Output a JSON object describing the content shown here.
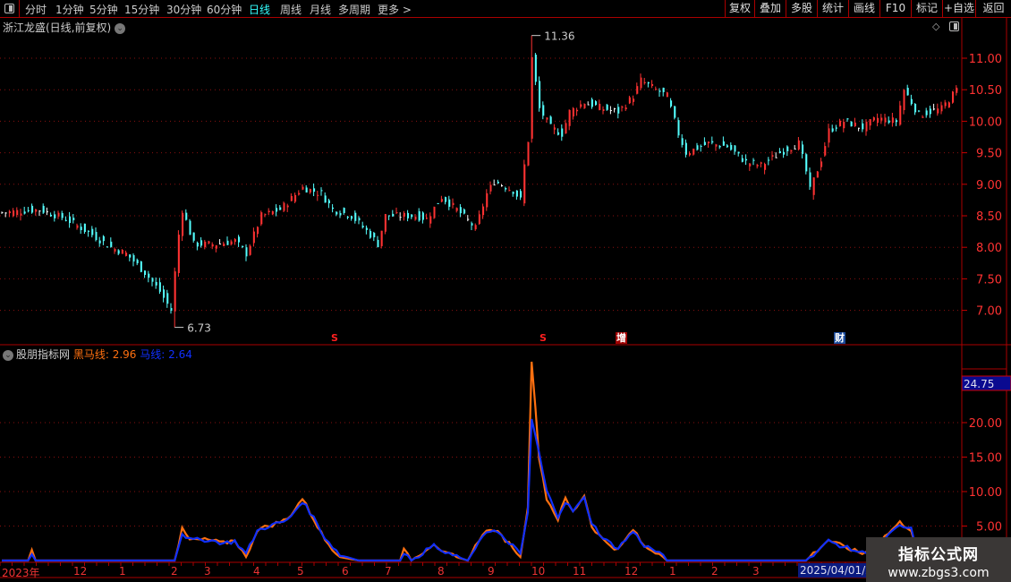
{
  "toolbar": {
    "periods": [
      "分时",
      "1分钟",
      "5分钟",
      "15分钟",
      "30分钟",
      "60分钟",
      "日线",
      "周线",
      "月线",
      "多周期",
      "更多 >"
    ],
    "active_period": "日线",
    "buttons": [
      "复权",
      "叠加",
      "多股",
      "统计",
      "画线",
      "F10",
      "标记",
      "+自选",
      "返回"
    ]
  },
  "title": "浙江龙盛(日线,前复权)",
  "price_axis": {
    "ticks": [
      "11.00",
      "10.50",
      "10.00",
      "9.50",
      "9.00",
      "8.50",
      "8.00",
      "7.50",
      "7.00"
    ]
  },
  "annotations": {
    "high": "11.36",
    "low": "6.73"
  },
  "markers": [
    {
      "text": "S",
      "color": "#ff2020"
    },
    {
      "text": "S",
      "color": "#ff2020"
    },
    {
      "text": "增",
      "color": "#ffffff",
      "bg": "#a00000"
    },
    {
      "text": "财",
      "color": "#ffffff",
      "bg": "#1a4a9a"
    }
  ],
  "indicator": {
    "name": "股朋指标网",
    "series": [
      {
        "name": "黑马线",
        "value": "2.96",
        "color": "#ff7010"
      },
      {
        "name": "马线",
        "value": "2.64",
        "color": "#1030ff"
      }
    ],
    "axis_ticks": [
      "20.00",
      "15.00",
      "10.00",
      "5.00"
    ],
    "current_value_label": "24.75"
  },
  "date_axis": {
    "labels": [
      "2023年",
      "12",
      "1",
      "2",
      "3",
      "4",
      "5",
      "6",
      "7",
      "8",
      "9",
      "10",
      "11",
      "12",
      "1",
      "2",
      "3"
    ],
    "highlight": "2025/04/01/二"
  },
  "watermark": {
    "title": "指标公式网",
    "url": "www.zbgs3.com"
  },
  "chart_data": {
    "type": "candlestick",
    "up_color": "#ff3232",
    "down_color": "#54ffff",
    "price_ylim": [
      6.6,
      11.5
    ],
    "price_keypoints": [
      [
        0,
        8.55
      ],
      [
        10,
        8.6
      ],
      [
        17,
        8.45
      ],
      [
        24,
        8.2
      ],
      [
        29,
        8.0
      ],
      [
        33,
        7.9
      ],
      [
        38,
        7.6
      ],
      [
        42,
        7.3
      ],
      [
        45,
        7.0
      ],
      [
        47,
        8.2
      ],
      [
        48,
        8.6
      ],
      [
        51,
        8.05
      ],
      [
        57,
        8.05
      ],
      [
        62,
        8.1
      ],
      [
        65,
        7.9
      ],
      [
        69,
        8.5
      ],
      [
        74,
        8.6
      ],
      [
        80,
        8.95
      ],
      [
        85,
        8.85
      ],
      [
        88,
        8.6
      ],
      [
        93,
        8.5
      ],
      [
        98,
        8.2
      ],
      [
        100,
        8.05
      ],
      [
        102,
        8.5
      ],
      [
        110,
        8.5
      ],
      [
        113,
        8.45
      ],
      [
        117,
        8.8
      ],
      [
        121,
        8.6
      ],
      [
        126,
        8.3
      ],
      [
        129,
        8.85
      ],
      [
        131,
        9.05
      ],
      [
        136,
        8.9
      ],
      [
        138,
        8.75
      ],
      [
        139,
        9.3
      ],
      [
        140,
        9.7
      ],
      [
        141,
        11.0
      ],
      [
        143,
        10.2
      ],
      [
        146,
        9.9
      ],
      [
        149,
        9.8
      ],
      [
        151,
        10.15
      ],
      [
        155,
        10.3
      ],
      [
        160,
        10.2
      ],
      [
        164,
        10.15
      ],
      [
        168,
        10.4
      ],
      [
        170,
        10.65
      ],
      [
        174,
        10.5
      ],
      [
        177,
        10.4
      ],
      [
        180,
        9.8
      ],
      [
        182,
        9.5
      ],
      [
        188,
        9.65
      ],
      [
        193,
        9.6
      ],
      [
        198,
        9.35
      ],
      [
        202,
        9.3
      ],
      [
        207,
        9.5
      ],
      [
        212,
        9.65
      ],
      [
        214,
        9.2
      ],
      [
        215,
        8.9
      ],
      [
        218,
        9.4
      ],
      [
        220,
        9.85
      ],
      [
        224,
        10.0
      ],
      [
        229,
        9.9
      ],
      [
        233,
        10.05
      ],
      [
        238,
        10.0
      ],
      [
        240,
        10.5
      ],
      [
        244,
        10.1
      ],
      [
        250,
        10.2
      ],
      [
        254,
        10.5
      ]
    ],
    "indicator_ylim": [
      0,
      30
    ],
    "black_horse_keypoints": [
      [
        0,
        0
      ],
      [
        7,
        0
      ],
      [
        8,
        1.5
      ],
      [
        9,
        0
      ],
      [
        46,
        0
      ],
      [
        48,
        4.5
      ],
      [
        50,
        3
      ],
      [
        55,
        3
      ],
      [
        59,
        2.5
      ],
      [
        62,
        3
      ],
      [
        65,
        0.5
      ],
      [
        68,
        4.5
      ],
      [
        71,
        5
      ],
      [
        76,
        6
      ],
      [
        80,
        9
      ],
      [
        83,
        6
      ],
      [
        86,
        3
      ],
      [
        90,
        0.5
      ],
      [
        95,
        0
      ],
      [
        106,
        0
      ],
      [
        107,
        1.5
      ],
      [
        109,
        0
      ],
      [
        115,
        2.5
      ],
      [
        118,
        1
      ],
      [
        121,
        0.5
      ],
      [
        124,
        0
      ],
      [
        128,
        4
      ],
      [
        131,
        4.5
      ],
      [
        136,
        2
      ],
      [
        138,
        0.5
      ],
      [
        140,
        8
      ],
      [
        141,
        29
      ],
      [
        143,
        15
      ],
      [
        145,
        9
      ],
      [
        148,
        6
      ],
      [
        150,
        9
      ],
      [
        152,
        7
      ],
      [
        155,
        9.5
      ],
      [
        157,
        5
      ],
      [
        160,
        3
      ],
      [
        164,
        1.5
      ],
      [
        168,
        4.5
      ],
      [
        171,
        2
      ],
      [
        175,
        1
      ],
      [
        177,
        0
      ],
      [
        214,
        0
      ],
      [
        220,
        3
      ],
      [
        224,
        2
      ],
      [
        229,
        1
      ],
      [
        232,
        2
      ],
      [
        239,
        5.5
      ],
      [
        242,
        4.5
      ],
      [
        244,
        0.5
      ],
      [
        246,
        0
      ],
      [
        254,
        0
      ]
    ],
    "horse_keypoints": [
      [
        0,
        0
      ],
      [
        7,
        0
      ],
      [
        8,
        1
      ],
      [
        9,
        0
      ],
      [
        46,
        0
      ],
      [
        48,
        4
      ],
      [
        50,
        3
      ],
      [
        55,
        3
      ],
      [
        59,
        2.5
      ],
      [
        62,
        2.8
      ],
      [
        65,
        1
      ],
      [
        68,
        4.3
      ],
      [
        71,
        5
      ],
      [
        76,
        5.8
      ],
      [
        80,
        8.6
      ],
      [
        83,
        6.2
      ],
      [
        86,
        3.3
      ],
      [
        90,
        0.8
      ],
      [
        95,
        0
      ],
      [
        106,
        0
      ],
      [
        107,
        1.2
      ],
      [
        109,
        0
      ],
      [
        115,
        2.2
      ],
      [
        118,
        1
      ],
      [
        121,
        0.6
      ],
      [
        124,
        0
      ],
      [
        128,
        3.8
      ],
      [
        131,
        4.3
      ],
      [
        136,
        2.2
      ],
      [
        138,
        0.8
      ],
      [
        140,
        7
      ],
      [
        141,
        20.5
      ],
      [
        143,
        15.5
      ],
      [
        145,
        10
      ],
      [
        148,
        6.5
      ],
      [
        150,
        8.5
      ],
      [
        152,
        7.2
      ],
      [
        155,
        9
      ],
      [
        157,
        5.5
      ],
      [
        160,
        3.2
      ],
      [
        164,
        1.8
      ],
      [
        168,
        4.2
      ],
      [
        171,
        2.2
      ],
      [
        175,
        1.1
      ],
      [
        177,
        0
      ],
      [
        214,
        0
      ],
      [
        220,
        2.8
      ],
      [
        224,
        2
      ],
      [
        229,
        1.1
      ],
      [
        232,
        1.9
      ],
      [
        239,
        5
      ],
      [
        242,
        4.5
      ],
      [
        244,
        0.8
      ],
      [
        246,
        0
      ],
      [
        254,
        0
      ]
    ]
  }
}
